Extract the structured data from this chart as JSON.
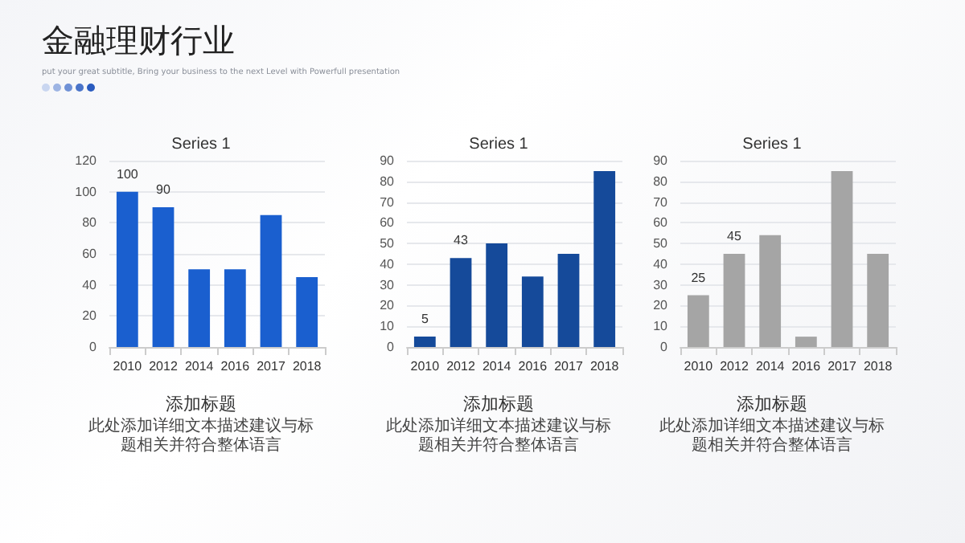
{
  "chart_data": [
    {
      "type": "other",
      "title": "金融理财行业",
      "subtitle": "put your great subtitle, Bring your business to the next Level with Powerfull presentation"
    },
    {
      "type": "bar",
      "title": "Series 1",
      "categories": [
        "2010",
        "2012",
        "2014",
        "2016",
        "2017",
        "2018"
      ],
      "values": [
        100,
        90,
        50,
        50,
        85,
        45
      ],
      "value_labels": [
        "100",
        "90",
        null,
        null,
        null,
        null
      ],
      "color": "#1a5fcf",
      "ylim": [
        0,
        120
      ],
      "yticks": [
        0,
        20,
        40,
        60,
        80,
        100,
        120
      ],
      "grid": "y",
      "annotations": [
        "添加标题",
        "此处添加详细文本描述建议与标题相关并符合整体语言"
      ]
    },
    {
      "type": "bar",
      "title": "Series 1",
      "categories": [
        "2010",
        "2012",
        "2014",
        "2016",
        "2017",
        "2018"
      ],
      "values": [
        5,
        43,
        50,
        34,
        45,
        85
      ],
      "value_labels": [
        "5",
        "43",
        null,
        null,
        null,
        null
      ],
      "color": "#154a9a",
      "ylim": [
        0,
        90
      ],
      "yticks": [
        0,
        10,
        20,
        30,
        40,
        50,
        60,
        70,
        80,
        90
      ],
      "grid": "y",
      "annotations": [
        "添加标题",
        "此处添加详细文本描述建议与标题相关并符合整体语言"
      ]
    },
    {
      "type": "bar",
      "title": "Series 1",
      "categories": [
        "2010",
        "2012",
        "2014",
        "2016",
        "2017",
        "2018"
      ],
      "values": [
        25,
        45,
        54,
        5,
        85,
        45
      ],
      "value_labels": [
        "25",
        "45",
        null,
        null,
        null,
        null
      ],
      "color": "#a5a5a5",
      "ylim": [
        0,
        90
      ],
      "yticks": [
        0,
        10,
        20,
        30,
        40,
        50,
        60,
        70,
        80,
        90
      ],
      "grid": "y",
      "annotations": [
        "添加标题",
        "此处添加详细文本描述建议与标题相关并符合整体语言"
      ]
    }
  ]
}
